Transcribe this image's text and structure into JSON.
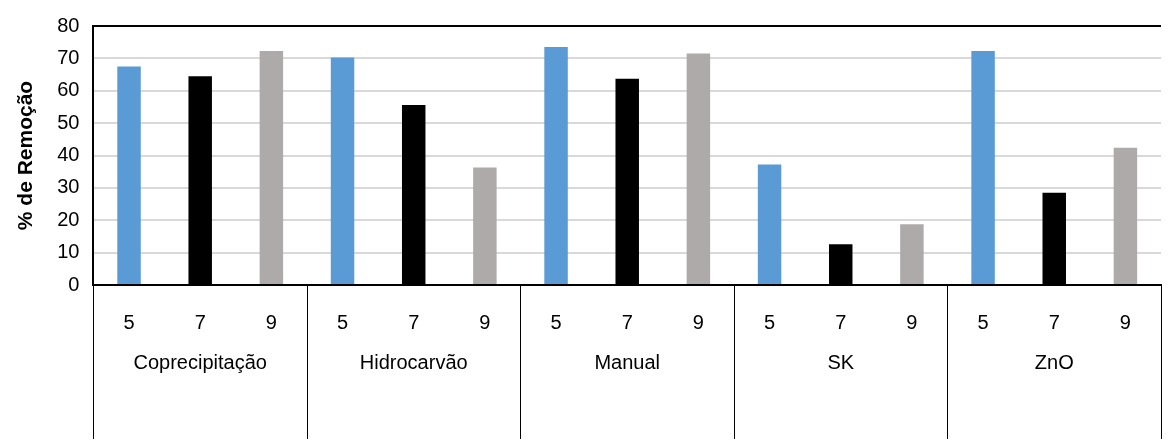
{
  "chart_data": {
    "type": "bar",
    "ylabel": "% de Remoção",
    "categories": [
      "Coprecipitação",
      "Hidrocarvão",
      "Manual",
      "SK",
      "ZnO"
    ],
    "series": [
      {
        "name": "5",
        "color": "#5b9bd5",
        "values": [
          67.5,
          70.3,
          73.5,
          37.2,
          72.3
        ]
      },
      {
        "name": "7",
        "color": "#000000",
        "values": [
          64.5,
          55.6,
          63.7,
          12.6,
          28.5
        ]
      },
      {
        "name": "9",
        "color": "#aeaaaa",
        "values": [
          72.3,
          36.3,
          71.5,
          18.8,
          42.4
        ]
      }
    ],
    "ylim": [
      0,
      80
    ],
    "yticks": [
      0,
      10,
      20,
      30,
      40,
      50,
      60,
      70,
      80
    ],
    "grid": "y",
    "legend": false
  }
}
